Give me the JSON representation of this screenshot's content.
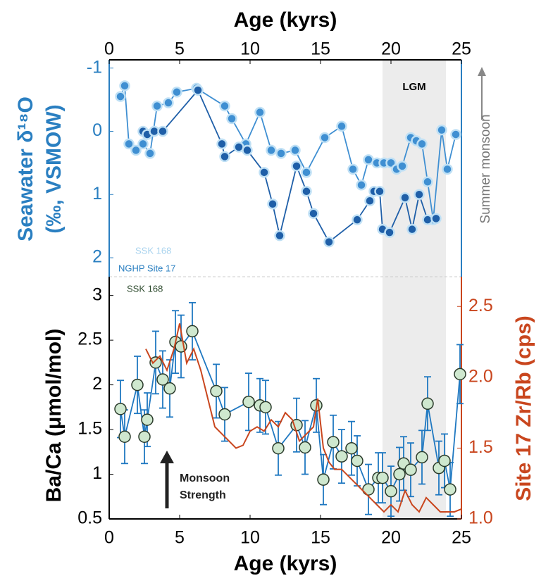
{
  "chart_data": [
    {
      "type": "line",
      "x_label": "Age (kyrs)",
      "y_label": [
        "Seawater δ¹⁸O",
        "(‰, VSMOW)"
      ],
      "xlim": [
        0,
        25
      ],
      "xticks": [
        0,
        5,
        10,
        15,
        20,
        25
      ],
      "xaxis_position": "top",
      "ylim": [
        -1.13,
        2.3
      ],
      "y_reversed": true,
      "yticks": [
        -1,
        0,
        1,
        2
      ],
      "grid": false,
      "axis_color": "#2a7fc1",
      "shaded_region": {
        "label": "LGM",
        "x": [
          19.4,
          23.9
        ],
        "color": "#ececec"
      },
      "series": [
        {
          "name": "SSK 168",
          "color": "#3f8fd2",
          "label_color": "#a9d3ee",
          "x": [
            0.8,
            1.1,
            1.4,
            1.9,
            2.4,
            2.9,
            3.4,
            4.2,
            4.8,
            6.2,
            8.2,
            8.7,
            9.7,
            10.7,
            11.5,
            12.2,
            13.2,
            14.0,
            15.3,
            16.5,
            17.3,
            17.9,
            18.4,
            19.0,
            19.5,
            20.0,
            20.4,
            20.8,
            21.4,
            21.8,
            22.2,
            22.6,
            23.0,
            23.6,
            24.0,
            24.6
          ],
          "values": [
            -0.55,
            -0.72,
            0.2,
            0.3,
            0.2,
            0.35,
            -0.4,
            -0.45,
            -0.62,
            -0.68,
            -0.4,
            -0.2,
            0.2,
            -0.3,
            0.3,
            0.35,
            0.3,
            0.65,
            0.1,
            -0.08,
            0.6,
            0.85,
            0.45,
            0.5,
            0.5,
            0.5,
            0.6,
            0.55,
            0.1,
            0.15,
            0.2,
            0.8,
            1.4,
            -0.02,
            0.6,
            0.05
          ]
        },
        {
          "name": "NGHP Site 17",
          "color": "#1f5fa8",
          "label_color": "#2a7fc1",
          "x": [
            2.4,
            2.7,
            3.2,
            3.8,
            6.3,
            8.0,
            8.2,
            9.2,
            9.8,
            11.0,
            11.6,
            12.1,
            13.3,
            14.0,
            14.5,
            15.6,
            17.6,
            18.5,
            18.8,
            19.2,
            19.4,
            19.9,
            21.0,
            21.5,
            22.0,
            22.6,
            23.2
          ],
          "values": [
            0.0,
            0.05,
            0.0,
            0.0,
            -0.65,
            0.2,
            0.4,
            0.25,
            0.3,
            0.65,
            1.15,
            1.65,
            0.55,
            0.95,
            1.3,
            1.75,
            1.4,
            1.1,
            0.95,
            0.95,
            1.55,
            1.6,
            1.05,
            1.55,
            1.0,
            1.4,
            1.38
          ]
        }
      ],
      "side_annotation": "Summer monsoon"
    },
    {
      "type": "line",
      "x_label": "Age (kyrs)",
      "y_label": "Ba/Ca (μmol/mol)",
      "y2_label": "Site 17 Zr/Rb (cps)",
      "xlim": [
        0,
        25
      ],
      "xticks": [
        0,
        5,
        10,
        15,
        20,
        25
      ],
      "xaxis_position": "bottom",
      "ylim": [
        0.5,
        3.21
      ],
      "yticks": [
        0.5,
        1,
        1.5,
        2,
        2.5,
        3
      ],
      "y2lim": [
        1.0,
        2.71
      ],
      "y2ticks": [
        {
          "value": 1,
          "label": "1.0"
        },
        1.5,
        {
          "value": 2,
          "label": "2.0"
        },
        2.5
      ],
      "axis_color": "#000000",
      "y2_axis_color": "#c9461e",
      "grid": false,
      "annotations": [
        "Monsoon",
        "Strength"
      ],
      "series": [
        {
          "name": "SSK 168",
          "color": "#1f78c1",
          "marker_color": "#cfe8cf",
          "label_color": "#2d4a2d",
          "x": [
            0.8,
            1.1,
            2.0,
            2.5,
            2.7,
            3.3,
            3.8,
            4.3,
            4.7,
            5.1,
            5.9,
            7.6,
            8.2,
            9.9,
            10.7,
            11.1,
            12.0,
            13.3,
            13.9,
            14.7,
            15.2,
            15.9,
            16.5,
            17.2,
            17.6,
            18.4,
            19.1,
            19.4,
            20.0,
            20.6,
            20.9,
            21.4,
            22.2,
            22.6,
            23.4,
            23.8,
            24.2,
            24.9
          ],
          "values": [
            1.73,
            1.42,
            2.0,
            1.42,
            1.61,
            2.25,
            2.06,
            1.96,
            2.48,
            2.43,
            2.6,
            1.93,
            1.67,
            1.81,
            1.77,
            1.75,
            1.29,
            1.55,
            1.3,
            1.77,
            0.94,
            1.36,
            1.2,
            1.29,
            1.15,
            0.83,
            0.96,
            0.96,
            0.81,
            1.0,
            1.12,
            1.05,
            1.19,
            1.79,
            1.07,
            1.15,
            0.83,
            2.12
          ],
          "errors": [
            0.32,
            0.3,
            0.32,
            0.3,
            0.3,
            0.35,
            0.32,
            0.32,
            0.35,
            0.35,
            0.32,
            0.3,
            0.3,
            0.32,
            0.3,
            0.3,
            0.3,
            0.3,
            0.3,
            0.3,
            0.28,
            0.3,
            0.3,
            0.3,
            0.28,
            0.28,
            0.28,
            0.28,
            0.28,
            0.3,
            0.3,
            0.3,
            0.3,
            0.3,
            0.3,
            0.3,
            0.3,
            0.33
          ]
        },
        {
          "axis": "y2",
          "color": "#c9461e",
          "x": [
            2.6,
            3.1,
            3.6,
            4.1,
            4.6,
            5.0,
            5.5,
            6.0,
            6.5,
            7.0,
            7.5,
            8.0,
            8.5,
            9.0,
            9.5,
            10.0,
            10.5,
            11.0,
            11.5,
            12.0,
            12.5,
            13.0,
            13.5,
            14.0,
            14.5,
            14.8,
            15.2,
            15.6,
            16.0,
            16.5,
            17.0,
            17.5,
            18.0,
            18.5,
            19.0,
            19.5,
            20.0,
            20.5,
            21.0,
            21.5,
            22.0,
            22.5,
            23.0,
            23.5,
            24.0,
            24.5,
            25.0
          ],
          "values": [
            2.2,
            2.1,
            2.15,
            2.05,
            2.2,
            2.38,
            2.1,
            2.2,
            2.05,
            1.85,
            1.65,
            1.6,
            1.55,
            1.5,
            1.52,
            1.62,
            1.65,
            1.62,
            1.7,
            1.65,
            1.75,
            1.7,
            1.55,
            1.6,
            1.65,
            1.85,
            1.5,
            1.4,
            1.35,
            1.35,
            1.3,
            1.25,
            1.2,
            1.15,
            1.1,
            1.05,
            1.1,
            1.05,
            1.2,
            1.1,
            1.05,
            1.15,
            1.1,
            1.05,
            1.05,
            1.05,
            1.07
          ]
        }
      ]
    }
  ]
}
